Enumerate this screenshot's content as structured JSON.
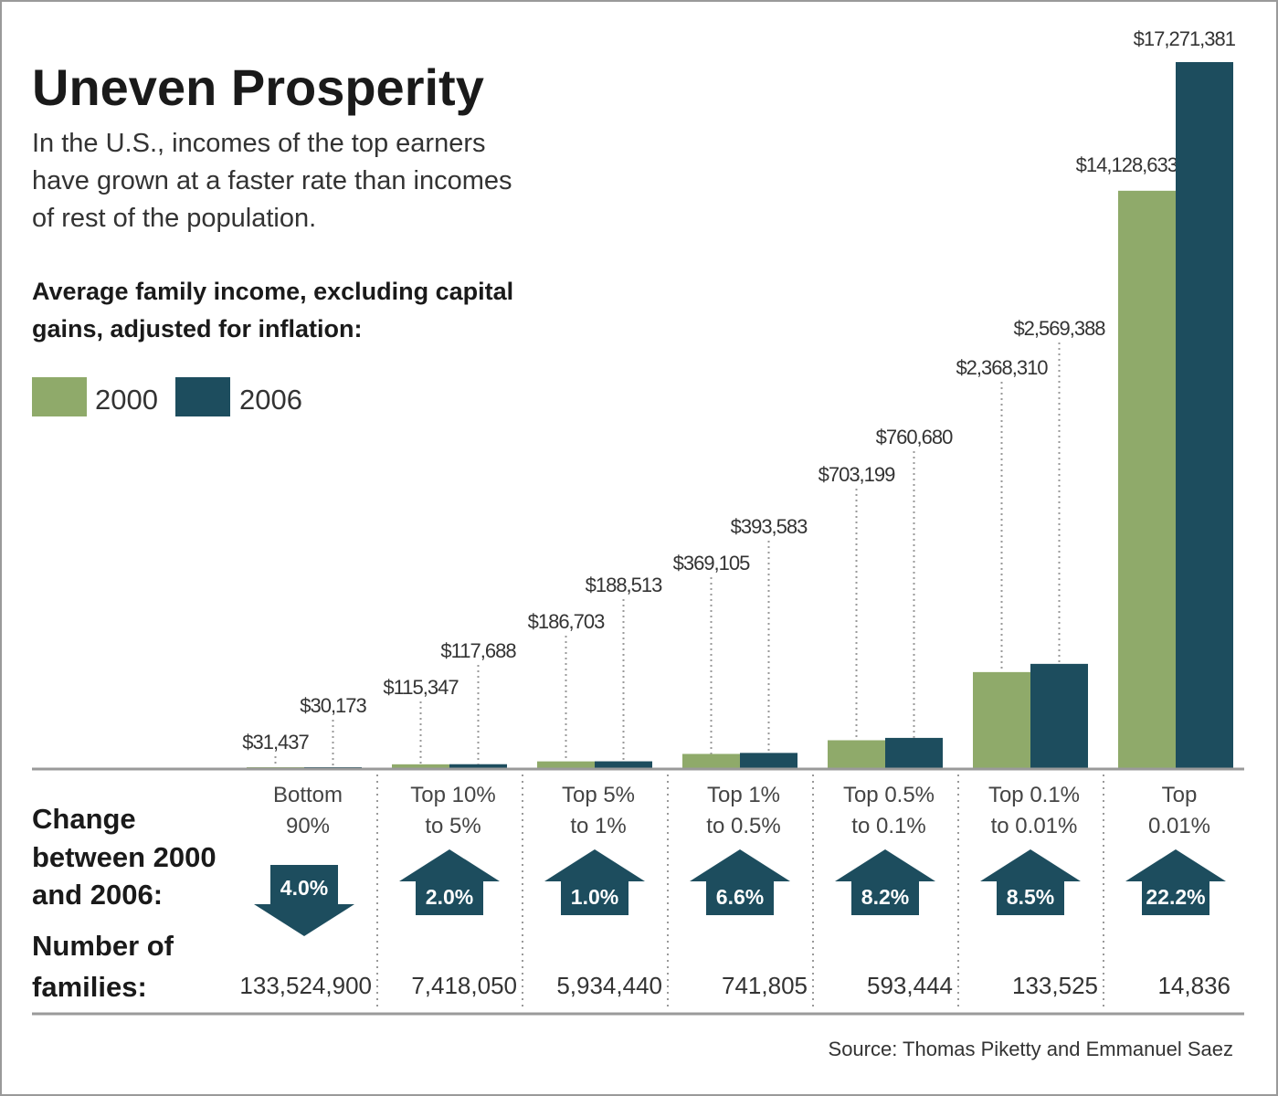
{
  "colors": {
    "y2000": "#8faa6a",
    "y2006": "#1d4d5e",
    "frame": "#9a9a9a"
  },
  "chart_data": {
    "type": "bar",
    "title": "Uneven Prosperity",
    "subtitle": [
      "In the U.S., incomes of the top earners",
      "have grown at a faster rate than incomes",
      "of rest of the population."
    ],
    "heading": [
      "Average family income, excluding capital",
      "gains, adjusted for inflation:"
    ],
    "categories": [
      [
        "Bottom",
        "90%"
      ],
      [
        "Top 10%",
        "to 5%"
      ],
      [
        "Top 5%",
        "to 1%"
      ],
      [
        "Top 1%",
        "to 0.5%"
      ],
      [
        "Top 0.5%",
        "to 0.1%"
      ],
      [
        "Top 0.1%",
        "to 0.01%"
      ],
      [
        "Top",
        "0.01%"
      ]
    ],
    "series": [
      {
        "name": "2000",
        "values": [
          31437,
          115347,
          186703,
          369105,
          703199,
          2368310,
          14128633
        ],
        "labels": [
          "$31,437",
          "$115,347",
          "$186,703",
          "$369,105",
          "$703,199",
          "$2,368,310",
          "$14,128,633"
        ]
      },
      {
        "name": "2006",
        "values": [
          30173,
          117688,
          188513,
          393583,
          760680,
          2569388,
          17271381
        ],
        "labels": [
          "$30,173",
          "$117,688",
          "$188,513",
          "$393,583",
          "$760,680",
          "$2,569,388",
          "$17,271,381"
        ]
      }
    ],
    "ylim": [
      0,
      17271381
    ],
    "grid": false,
    "legend": "top-left",
    "change_label": [
      "Change",
      "between 2000",
      "and 2006:"
    ],
    "change": [
      {
        "dir": "down",
        "label": "4.0%"
      },
      {
        "dir": "up",
        "label": "2.0%"
      },
      {
        "dir": "up",
        "label": "1.0%"
      },
      {
        "dir": "up",
        "label": "6.6%"
      },
      {
        "dir": "up",
        "label": "8.2%"
      },
      {
        "dir": "up",
        "label": "8.5%"
      },
      {
        "dir": "up",
        "label": "22.2%"
      }
    ],
    "families_label": [
      "Number of",
      "families:"
    ],
    "families": [
      "133,524,900",
      "7,418,050",
      "5,934,440",
      "741,805",
      "593,444",
      "133,525",
      "14,836"
    ],
    "source": "Source: Thomas Piketty and Emmanuel Saez"
  }
}
